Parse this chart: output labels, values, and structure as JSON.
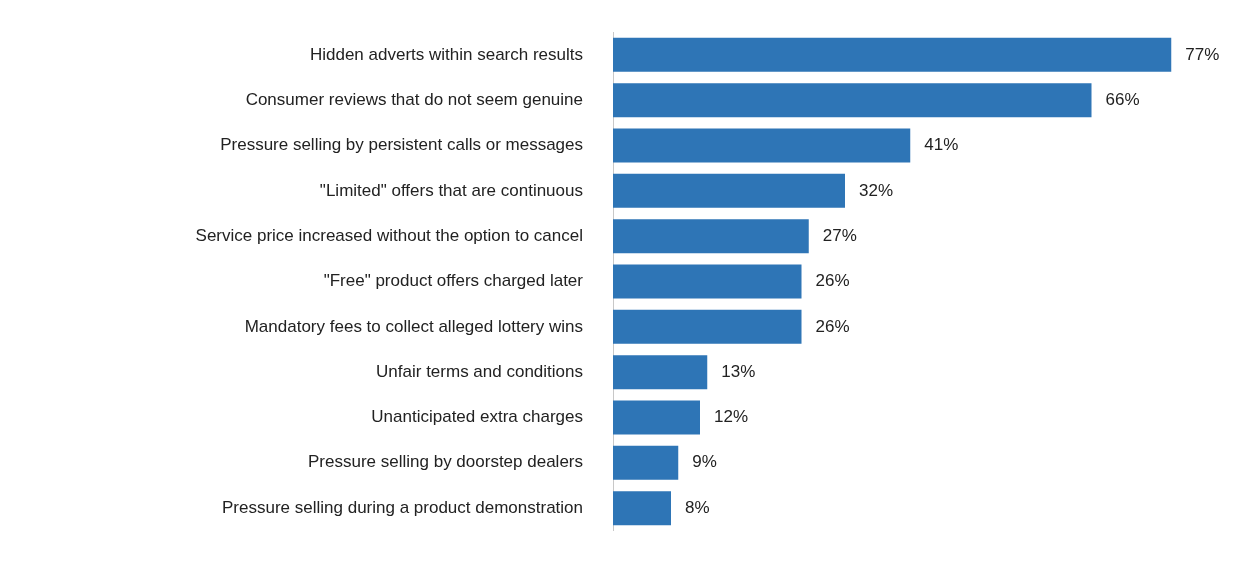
{
  "chart_data": {
    "type": "bar",
    "orientation": "horizontal",
    "categories": [
      "Hidden adverts within search results",
      "Consumer reviews that do not seem genuine",
      "Pressure selling by persistent calls or messages",
      "\"Limited\" offers that are continuous",
      "Service price increased without the option to cancel",
      "\"Free\" product offers charged later",
      "Mandatory fees to collect alleged lottery wins",
      "Unfair terms and conditions",
      "Unanticipated extra charges",
      "Pressure selling by doorstep dealers",
      "Pressure selling during a product demonstration"
    ],
    "values": [
      77,
      66,
      41,
      32,
      27,
      26,
      26,
      13,
      12,
      9,
      8
    ],
    "value_labels": [
      "77%",
      "66%",
      "41%",
      "32%",
      "27%",
      "26%",
      "26%",
      "13%",
      "12%",
      "9%",
      "8%"
    ],
    "color": "#2e75b6",
    "legend": false,
    "tick_labels": "y"
  }
}
